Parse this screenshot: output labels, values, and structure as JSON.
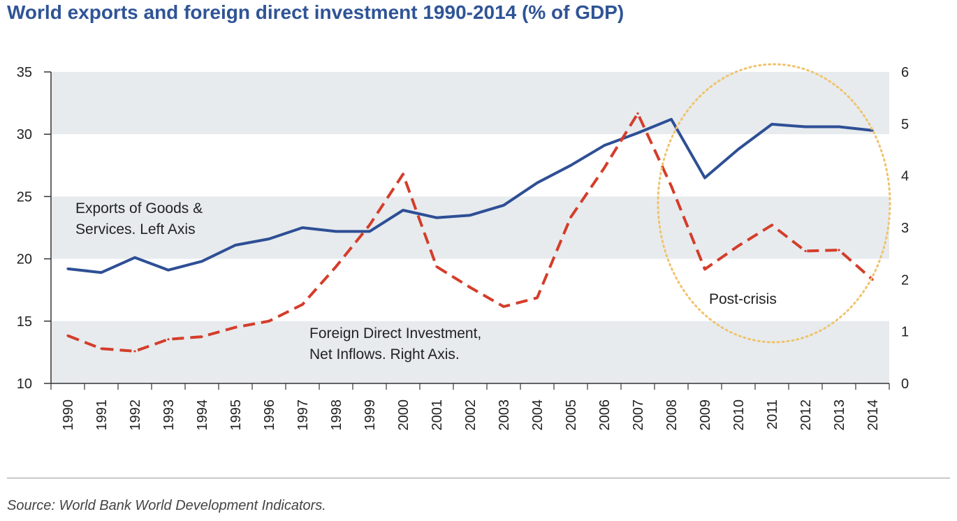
{
  "title": "World exports and foreign direct investment 1990-2014 (% of GDP)",
  "source": "Source: World Bank World Development Indicators.",
  "colors": {
    "exports": "#2e4f95",
    "fdi": "#d43d2a",
    "band": "#e7ebee",
    "circle": "#f0c36b",
    "axis": "#333333"
  },
  "chart_data": {
    "type": "line",
    "categories": [
      "1990",
      "1991",
      "1992",
      "1993",
      "1994",
      "1995",
      "1996",
      "1997",
      "1998",
      "1999",
      "2000",
      "2001",
      "2002",
      "2003",
      "2004",
      "2005",
      "2006",
      "2007",
      "2008",
      "2009",
      "2010",
      "2011",
      "2012",
      "2013",
      "2014"
    ],
    "left_axis": {
      "ylim": [
        10,
        35
      ],
      "ticks": [
        10,
        15,
        20,
        25,
        30,
        35
      ]
    },
    "right_axis": {
      "ylim": [
        0,
        6
      ],
      "ticks": [
        0,
        1,
        2,
        3,
        4,
        5,
        6
      ]
    },
    "grid": "alternating horizontal bands",
    "series": [
      {
        "axis": "left",
        "style": "solid",
        "values": [
          19.2,
          18.9,
          20.1,
          19.1,
          19.8,
          21.1,
          21.6,
          22.5,
          22.2,
          22.2,
          23.9,
          23.3,
          23.5,
          24.3,
          26.1,
          27.5,
          29.1,
          30.1,
          31.2,
          26.5,
          28.8,
          30.8,
          30.6,
          30.6,
          30.3
        ]
      },
      {
        "axis": "right",
        "style": "dashed",
        "values": [
          0.92,
          0.67,
          0.62,
          0.85,
          0.9,
          1.08,
          1.2,
          1.52,
          2.25,
          3.05,
          4.03,
          2.25,
          1.85,
          1.48,
          1.65,
          3.2,
          4.15,
          5.2,
          3.8,
          2.2,
          2.65,
          3.05,
          2.55,
          2.57,
          2.0
        ]
      }
    ],
    "annotations": {
      "exports_label": [
        "Exports of Goods &",
        "Services. Left Axis"
      ],
      "fdi_label": [
        "Foreign Direct Investment,",
        "Net Inflows. Right Axis."
      ],
      "post_crisis": "Post-crisis"
    }
  }
}
